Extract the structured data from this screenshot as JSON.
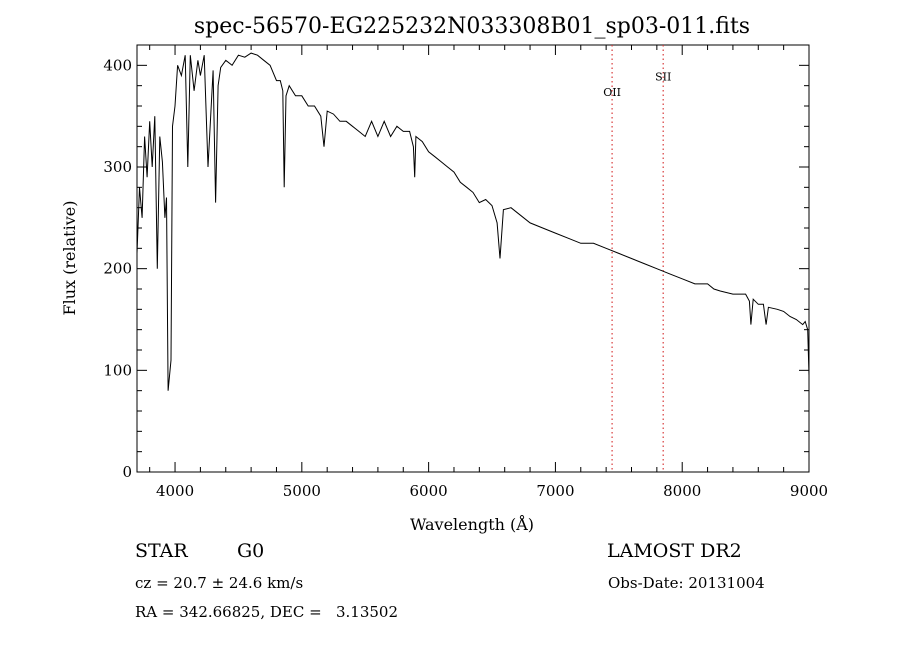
{
  "chart_data": {
    "type": "line",
    "title": "spec-56570-EG225232N033308B01_sp03-011.fits",
    "xlabel": "Wavelength (Å)",
    "ylabel": "Flux (relative)",
    "xlim": [
      3700,
      9000
    ],
    "ylim": [
      0,
      420
    ],
    "x_ticks": [
      4000,
      5000,
      6000,
      7000,
      8000,
      9000
    ],
    "y_ticks": [
      0,
      100,
      200,
      300,
      400
    ],
    "grid": false,
    "line_color": "#000000",
    "marker_color": "#d83a3a",
    "series": [
      {
        "x": [
          3700,
          3720,
          3740,
          3760,
          3780,
          3800,
          3820,
          3840,
          3860,
          3880,
          3900,
          3920,
          3933,
          3945,
          3968,
          3980,
          4000,
          4020,
          4050,
          4080,
          4101,
          4120,
          4150,
          4180,
          4200,
          4230,
          4260,
          4300,
          4320,
          4340,
          4360,
          4400,
          4450,
          4500,
          4550,
          4600,
          4650,
          4700,
          4750,
          4800,
          4830,
          4850,
          4861,
          4875,
          4900,
          4950,
          5000,
          5050,
          5100,
          5150,
          5175,
          5200,
          5250,
          5300,
          5350,
          5400,
          5450,
          5500,
          5550,
          5600,
          5650,
          5700,
          5750,
          5800,
          5850,
          5880,
          5890,
          5900,
          5950,
          6000,
          6050,
          6100,
          6150,
          6200,
          6250,
          6300,
          6350,
          6400,
          6450,
          6500,
          6540,
          6563,
          6590,
          6650,
          6700,
          6800,
          6900,
          7000,
          7100,
          7200,
          7300,
          7400,
          7500,
          7600,
          7700,
          7800,
          7900,
          8000,
          8100,
          8200,
          8250,
          8300,
          8400,
          8500,
          8530,
          8542,
          8560,
          8600,
          8640,
          8662,
          8680,
          8750,
          8800,
          8850,
          8900,
          8950,
          8970,
          8990,
          9000
        ],
        "y": [
          215,
          280,
          250,
          330,
          290,
          345,
          300,
          350,
          200,
          330,
          305,
          250,
          270,
          80,
          110,
          340,
          360,
          400,
          390,
          410,
          300,
          410,
          375,
          405,
          390,
          410,
          300,
          395,
          265,
          380,
          398,
          405,
          400,
          410,
          408,
          412,
          410,
          405,
          400,
          385,
          385,
          375,
          280,
          370,
          380,
          370,
          370,
          360,
          360,
          350,
          320,
          355,
          352,
          345,
          345,
          340,
          335,
          330,
          345,
          330,
          345,
          330,
          340,
          335,
          335,
          320,
          290,
          330,
          325,
          315,
          310,
          305,
          300,
          295,
          285,
          280,
          275,
          265,
          268,
          262,
          245,
          210,
          258,
          260,
          255,
          245,
          240,
          235,
          230,
          225,
          225,
          220,
          215,
          210,
          205,
          200,
          195,
          190,
          185,
          185,
          180,
          178,
          175,
          175,
          168,
          145,
          170,
          165,
          165,
          145,
          162,
          160,
          158,
          153,
          150,
          145,
          148,
          140,
          95
        ]
      }
    ],
    "annotations": [
      {
        "label": "OII",
        "x": 7447,
        "y_label": 370
      },
      {
        "label": "SII",
        "x": 7850,
        "y_label": 385
      }
    ]
  },
  "info": {
    "object_class": "STAR",
    "subclass": "G0",
    "survey": "LAMOST DR2",
    "redshift_line": "cz = 20.7 ± 24.6 km/s",
    "obs_date_line": "Obs-Date: 20131004",
    "coords_line": "RA = 342.66825, DEC =   3.13502"
  }
}
